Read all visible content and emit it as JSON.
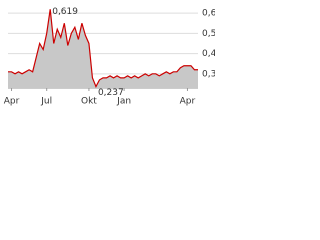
{
  "chart_data": {
    "type": "line",
    "x": [
      0,
      1,
      2,
      3,
      4,
      5,
      6,
      7,
      8,
      9,
      10,
      11,
      12,
      13,
      14,
      15,
      16,
      17,
      18,
      19,
      20,
      21,
      22,
      23,
      24,
      25,
      26,
      27,
      28,
      29,
      30,
      31,
      32,
      33,
      34,
      35,
      36,
      37,
      38,
      39,
      40,
      41,
      42,
      43,
      44,
      45,
      46,
      47,
      48,
      49,
      50,
      51,
      52,
      53,
      54
    ],
    "values": [
      0.31,
      0.31,
      0.3,
      0.31,
      0.3,
      0.31,
      0.32,
      0.31,
      0.38,
      0.45,
      0.42,
      0.5,
      0.619,
      0.45,
      0.52,
      0.48,
      0.55,
      0.44,
      0.5,
      0.53,
      0.47,
      0.55,
      0.49,
      0.45,
      0.28,
      0.237,
      0.27,
      0.28,
      0.28,
      0.29,
      0.28,
      0.29,
      0.28,
      0.28,
      0.29,
      0.28,
      0.29,
      0.28,
      0.29,
      0.3,
      0.29,
      0.3,
      0.3,
      0.29,
      0.3,
      0.31,
      0.3,
      0.31,
      0.31,
      0.33,
      0.34,
      0.34,
      0.34,
      0.32,
      0.32
    ],
    "value_labels": [
      null,
      null,
      null,
      null,
      null,
      null,
      null,
      null,
      null,
      null,
      null,
      null,
      "0,619",
      null,
      null,
      null,
      null,
      null,
      null,
      null,
      null,
      null,
      null,
      null,
      null,
      "0,237",
      null,
      null,
      null,
      null,
      null,
      null,
      null,
      null,
      null,
      null,
      null,
      null,
      null,
      null,
      null,
      null,
      null,
      null,
      null,
      null,
      null,
      null,
      null,
      null,
      null,
      null,
      null,
      null,
      null
    ],
    "color": "#cc0000",
    "fill": "#c8c8c8",
    "xlim": [
      0,
      54
    ],
    "xticks": [
      {
        "value": 1,
        "label": "Apr"
      },
      {
        "value": 11,
        "label": "Jul"
      },
      {
        "value": 23,
        "label": "Okt"
      },
      {
        "value": 33,
        "label": "Jan"
      },
      {
        "value": 51,
        "label": "Apr"
      }
    ],
    "ylim": [
      0.23,
      0.64
    ],
    "yticks": [
      {
        "value": 0.3,
        "label": "0,3"
      },
      {
        "value": 0.4,
        "label": "0,4"
      },
      {
        "value": 0.5,
        "label": "0,5"
      },
      {
        "value": 0.6,
        "label": "0,6"
      }
    ],
    "grid": true
  }
}
